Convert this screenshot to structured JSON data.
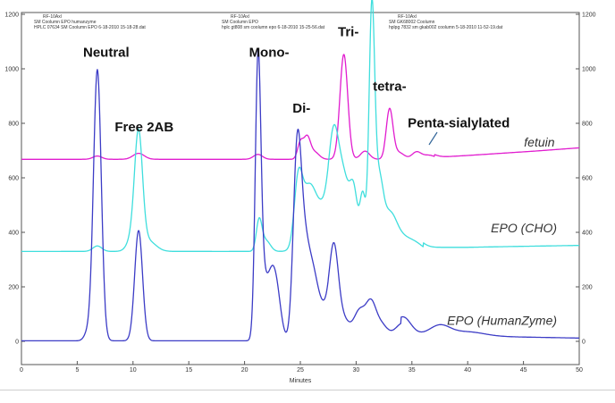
{
  "chart_data": {
    "type": "line",
    "xlabel": "Minutes",
    "ylabel": "",
    "xlim": [
      0,
      50
    ],
    "ylim": [
      0,
      1200
    ],
    "x_ticks": [
      0,
      5,
      10,
      15,
      20,
      25,
      30,
      35,
      40,
      45,
      50
    ],
    "y_ticks": [
      0,
      200,
      400,
      600,
      800,
      1000,
      1200
    ],
    "grid": false,
    "colors": {
      "fetuin": "#e11ccf",
      "epo_cho": "#3fdedd",
      "epo_humanzyme": "#3c3cc6"
    },
    "header_blocks": [
      {
        "lines": [
          "RF-10Axl",
          "SM Coolumn EPO humanzyme",
          "HPLC 07634 SM Coolumn EPO 6-18-2010 15-18-28.dat"
        ]
      },
      {
        "lines": [
          "RF-10Axl",
          "SM Coolumn EPO",
          "hplc gt808 sm coolumn epo 6-18-2010 15-25-56.dat"
        ]
      },
      {
        "lines": [
          "RF-10Axl",
          "SM GK68002 Coolumn",
          "hplpg 7832 sm gkab002 coolumn 5-18-2010 11-52-19.dat"
        ]
      }
    ],
    "annotations": [
      {
        "text": "Neutral",
        "x": 7.6,
        "y": 1045
      },
      {
        "text": "Free 2AB",
        "x": 11.0,
        "y": 770
      },
      {
        "text": "Mono-",
        "x": 22.2,
        "y": 1045
      },
      {
        "text": "Di-",
        "x": 25.1,
        "y": 840
      },
      {
        "text": "Tri-",
        "x": 29.3,
        "y": 1120
      },
      {
        "text": "tetra-",
        "x": 33.0,
        "y": 920
      },
      {
        "text": "Penta-sialylated",
        "x": 39.2,
        "y": 785
      }
    ],
    "series_labels": [
      {
        "text": "fetuin",
        "x": 47.8,
        "y": 715
      },
      {
        "text": "EPO (CHO)",
        "x": 48.0,
        "y": 400
      },
      {
        "text": "EPO (HumanZyme)",
        "x": 48.0,
        "y": 60
      }
    ],
    "series": [
      {
        "key": "fetuin",
        "baseline": 668,
        "peaks": [
          [
            6.8,
            0.4,
            12
          ],
          [
            10.5,
            0.5,
            22
          ],
          [
            21.2,
            0.4,
            18
          ],
          [
            25.0,
            0.25,
            60
          ],
          [
            25.6,
            0.3,
            80
          ],
          [
            26.3,
            0.4,
            25
          ],
          [
            28.9,
            0.35,
            385
          ],
          [
            30.8,
            0.4,
            30
          ],
          [
            33.0,
            0.3,
            180
          ],
          [
            33.8,
            0.5,
            25
          ],
          [
            35.4,
            0.4,
            25
          ],
          [
            36.5,
            0.6,
            15
          ]
        ],
        "drift": [
          [
            37,
            675
          ],
          [
            40,
            682
          ],
          [
            43,
            690
          ],
          [
            46,
            698
          ],
          [
            50,
            710
          ]
        ]
      },
      {
        "key": "epo_cho",
        "baseline": 330,
        "peaks": [
          [
            6.8,
            0.4,
            20
          ],
          [
            10.5,
            0.35,
            385
          ],
          [
            10.1,
            0.5,
            60
          ],
          [
            11.3,
            0.7,
            40
          ],
          [
            21.3,
            0.25,
            110
          ],
          [
            21.9,
            0.4,
            40
          ],
          [
            24.8,
            0.35,
            200
          ],
          [
            25.4,
            0.6,
            150
          ],
          [
            26.0,
            0.5,
            100
          ],
          [
            27.0,
            0.7,
            150
          ],
          [
            28.0,
            0.45,
            360
          ],
          [
            28.9,
            0.5,
            250
          ],
          [
            29.8,
            0.35,
            200
          ],
          [
            30.6,
            0.25,
            200
          ],
          [
            31.4,
            0.25,
            840
          ],
          [
            32.0,
            0.4,
            250
          ],
          [
            33.0,
            0.6,
            120
          ],
          [
            34.2,
            0.9,
            50
          ],
          [
            35.5,
            0.6,
            15
          ]
        ],
        "drift": [
          [
            36,
            345
          ],
          [
            40,
            345
          ],
          [
            44,
            348
          ],
          [
            50,
            352
          ]
        ]
      },
      {
        "key": "epo_humanzyme",
        "baseline": 2,
        "peaks": [
          [
            5.9,
            0.3,
            25
          ],
          [
            6.8,
            0.35,
            995
          ],
          [
            10.5,
            0.35,
            405
          ],
          [
            21.2,
            0.25,
            990
          ],
          [
            21.6,
            0.3,
            160
          ],
          [
            22.3,
            0.45,
            210
          ],
          [
            22.9,
            0.4,
            140
          ],
          [
            24.7,
            0.35,
            620
          ],
          [
            25.3,
            0.45,
            330
          ],
          [
            26.1,
            0.45,
            190
          ],
          [
            27.0,
            0.6,
            110
          ],
          [
            28.0,
            0.4,
            300
          ],
          [
            28.8,
            0.6,
            80
          ],
          [
            30.3,
            0.5,
            105
          ],
          [
            31.3,
            0.45,
            120
          ],
          [
            32.2,
            0.6,
            60
          ],
          [
            34.2,
            0.7,
            65
          ],
          [
            37.5,
            0.9,
            35
          ],
          [
            40.0,
            1.5,
            15
          ]
        ],
        "drift": [
          [
            34,
            25
          ],
          [
            38,
            22
          ],
          [
            42,
            18
          ],
          [
            46,
            15
          ],
          [
            50,
            12
          ]
        ]
      }
    ]
  }
}
